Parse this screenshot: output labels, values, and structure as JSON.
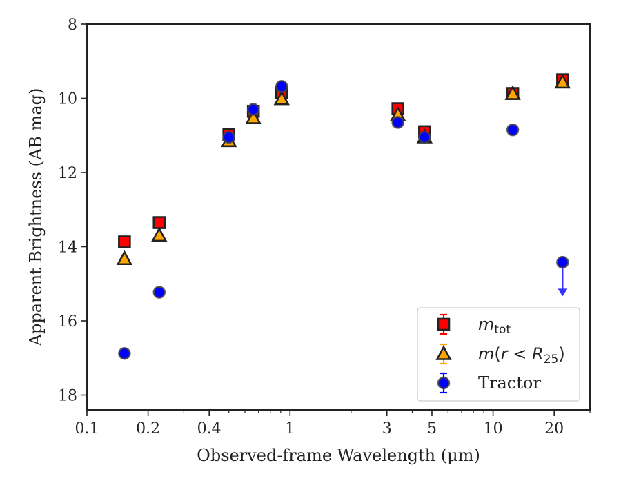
{
  "chart_data": {
    "type": "scatter",
    "title": "",
    "xlabel": "Observed-frame Wavelength (μm)",
    "ylabel": "Apparent Brightness (AB mag)",
    "xscale": "log",
    "xlim": [
      0.1,
      30
    ],
    "ylim": [
      18.4,
      8
    ],
    "y_inverted": true,
    "x_ticks": [
      {
        "value": 0.1,
        "label": "0.1"
      },
      {
        "value": 0.2,
        "label": "0.2"
      },
      {
        "value": 0.4,
        "label": "0.4"
      },
      {
        "value": 1,
        "label": "1"
      },
      {
        "value": 3,
        "label": "3"
      },
      {
        "value": 5,
        "label": "5"
      },
      {
        "value": 10,
        "label": "10"
      },
      {
        "value": 20,
        "label": "20"
      }
    ],
    "y_ticks": [
      {
        "value": 8,
        "label": "8"
      },
      {
        "value": 10,
        "label": "10"
      },
      {
        "value": 12,
        "label": "12"
      },
      {
        "value": 14,
        "label": "14"
      },
      {
        "value": 16,
        "label": "16"
      },
      {
        "value": 18,
        "label": "18"
      }
    ],
    "legend_position": "lower-right",
    "series": [
      {
        "name": "m_tot",
        "marker": "square",
        "color": "#ff0000",
        "points": [
          {
            "x": 0.153,
            "y": 13.87
          },
          {
            "x": 0.227,
            "y": 13.35
          },
          {
            "x": 0.5,
            "y": 10.97
          },
          {
            "x": 0.66,
            "y": 10.35
          },
          {
            "x": 0.91,
            "y": 9.85
          },
          {
            "x": 3.4,
            "y": 10.28
          },
          {
            "x": 4.6,
            "y": 10.9
          },
          {
            "x": 12.5,
            "y": 9.87
          },
          {
            "x": 22.0,
            "y": 9.5
          }
        ]
      },
      {
        "name": "m(r < R25)",
        "marker": "triangle",
        "color": "#ffa500",
        "points": [
          {
            "x": 0.153,
            "y": 14.33
          },
          {
            "x": 0.227,
            "y": 13.7
          },
          {
            "x": 0.5,
            "y": 11.15
          },
          {
            "x": 0.66,
            "y": 10.53
          },
          {
            "x": 0.91,
            "y": 10.02
          },
          {
            "x": 3.4,
            "y": 10.45
          },
          {
            "x": 4.6,
            "y": 11.05
          },
          {
            "x": 12.5,
            "y": 9.88
          },
          {
            "x": 22.0,
            "y": 9.57
          }
        ]
      },
      {
        "name": "Tractor",
        "marker": "circle",
        "color": "#0000ff",
        "points": [
          {
            "x": 0.153,
            "y": 16.88
          },
          {
            "x": 0.227,
            "y": 15.23
          },
          {
            "x": 0.5,
            "y": 11.05
          },
          {
            "x": 0.66,
            "y": 10.3
          },
          {
            "x": 0.91,
            "y": 9.68
          },
          {
            "x": 3.4,
            "y": 10.65
          },
          {
            "x": 4.6,
            "y": 11.05
          },
          {
            "x": 12.5,
            "y": 10.85
          },
          {
            "x": 22.0,
            "y": 14.42,
            "upper_limit": true,
            "arrow_to": 15.3
          }
        ]
      }
    ]
  }
}
